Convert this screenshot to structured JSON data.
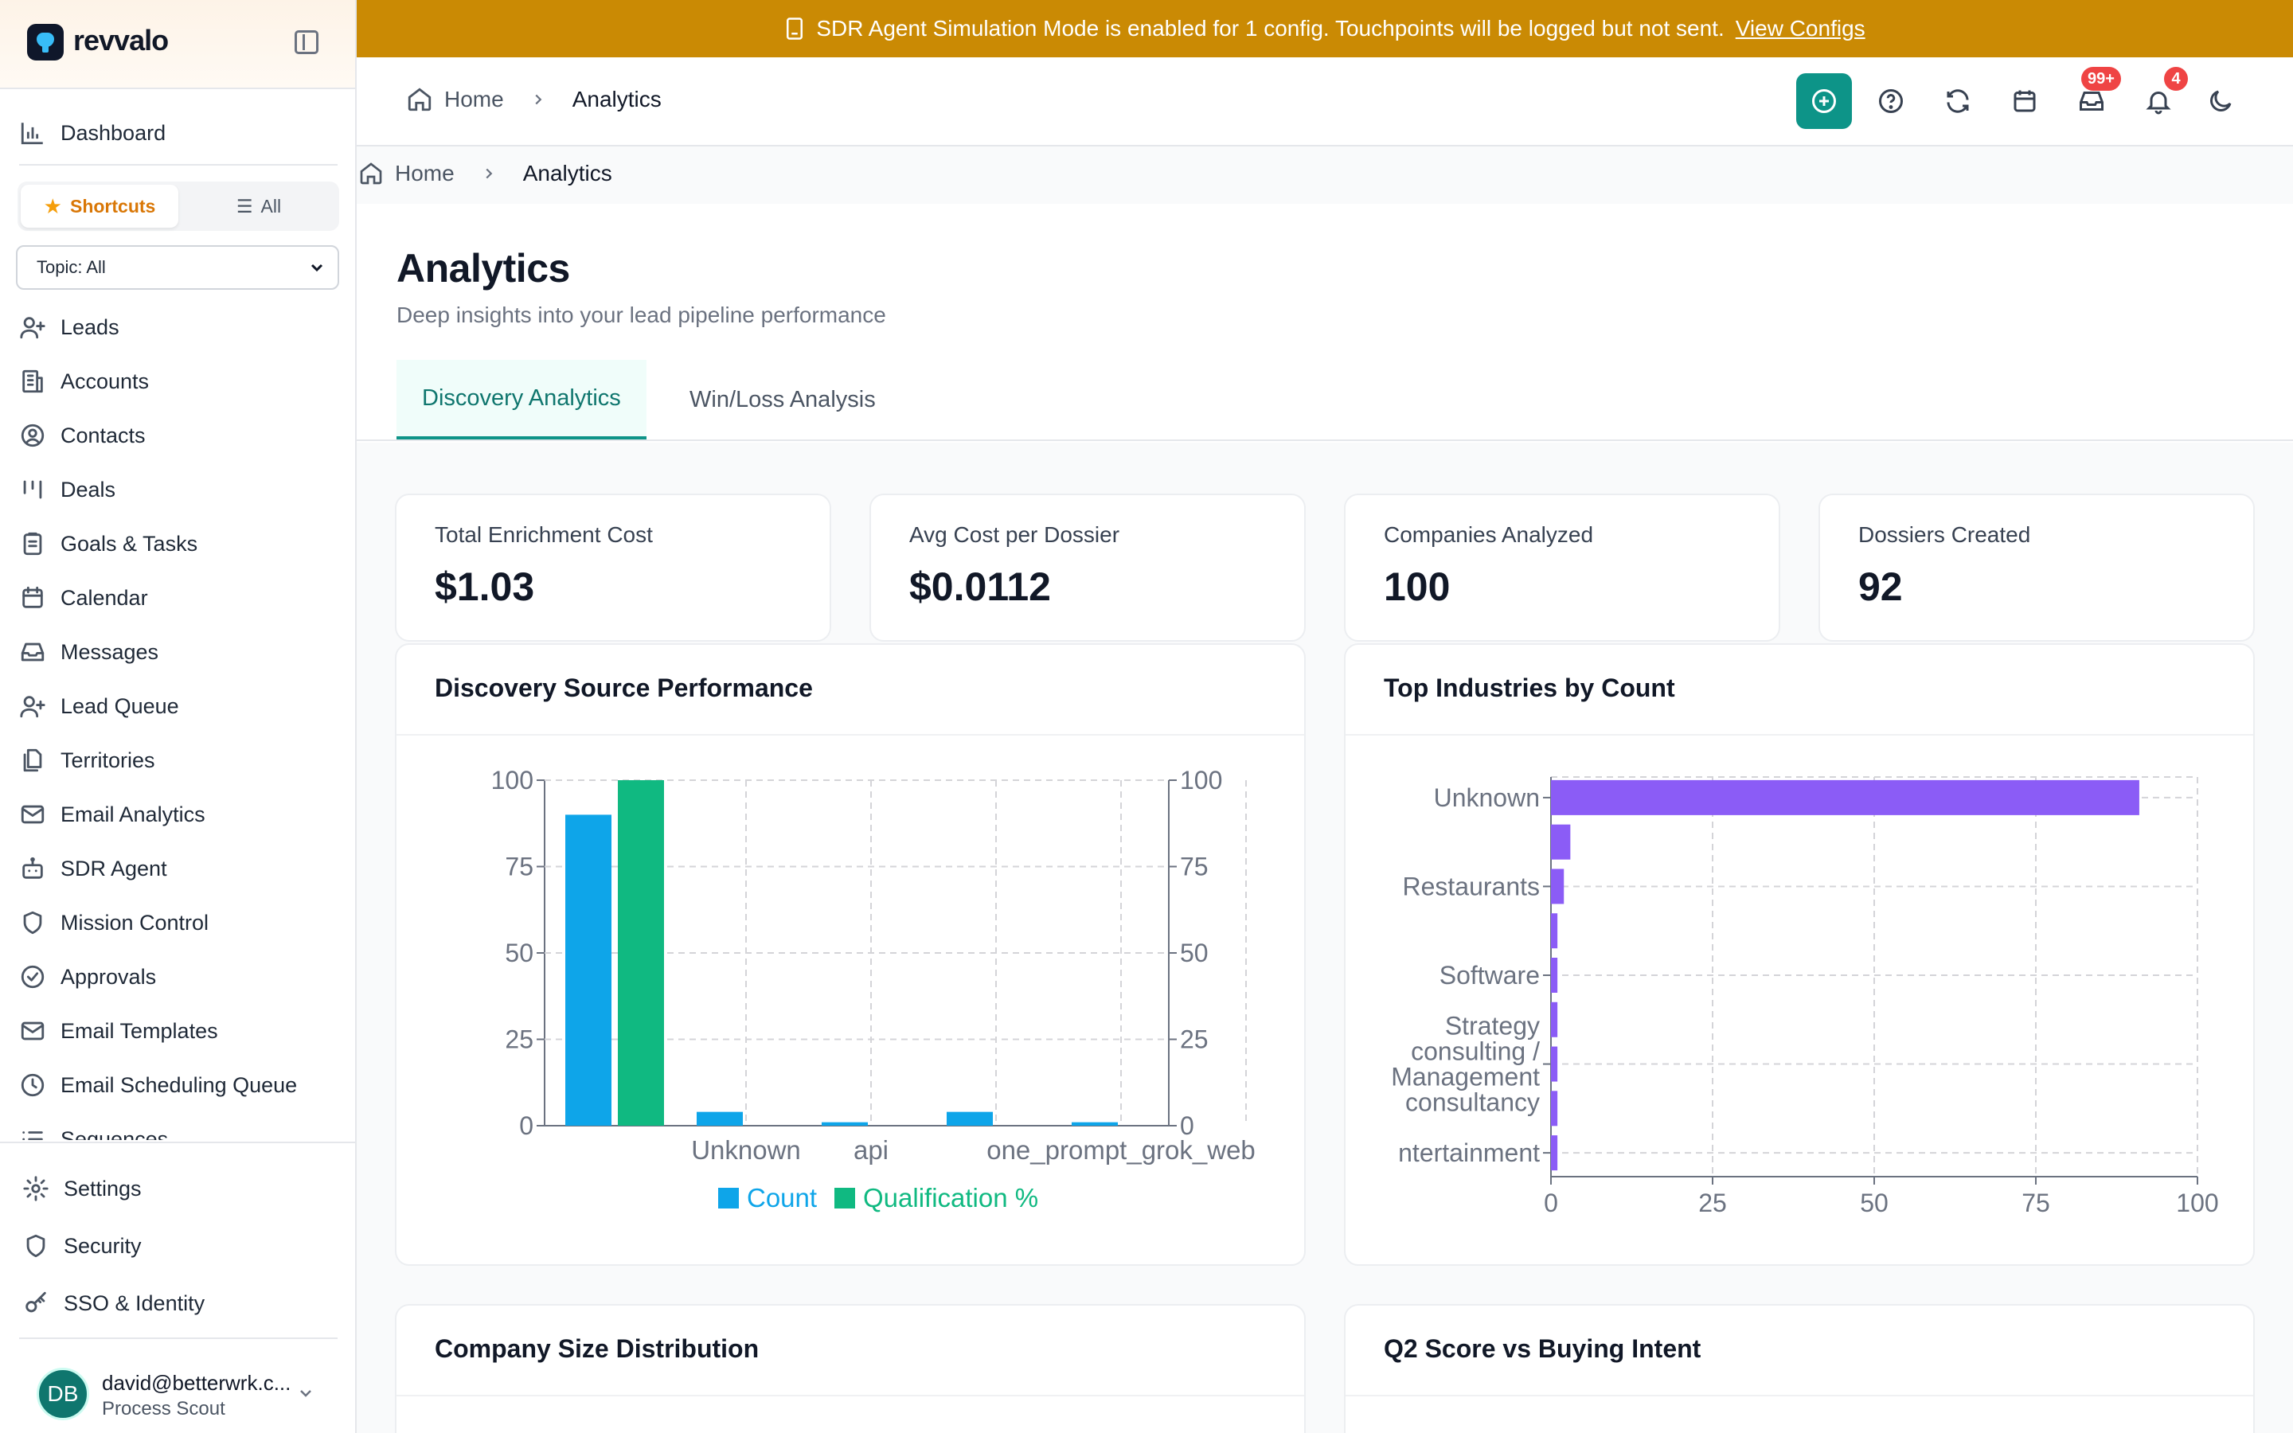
{
  "app": {
    "brand": "revvalo"
  },
  "banner": {
    "message": "SDR Agent Simulation Mode is enabled for 1 config. Touchpoints will be logged but not sent.",
    "link": "View Configs"
  },
  "sidebar": {
    "dashboard": "Dashboard",
    "shortcuts_label": "Shortcuts",
    "all_label": "All",
    "topic_select": "Topic: All",
    "items": [
      {
        "label": "Leads",
        "icon": "user-plus-icon"
      },
      {
        "label": "Accounts",
        "icon": "building-icon"
      },
      {
        "label": "Contacts",
        "icon": "user-circle-icon"
      },
      {
        "label": "Deals",
        "icon": "kanban-icon"
      },
      {
        "label": "Goals & Tasks",
        "icon": "clipboard-icon"
      },
      {
        "label": "Calendar",
        "icon": "calendar-icon"
      },
      {
        "label": "Messages",
        "icon": "inbox-icon"
      },
      {
        "label": "Lead Queue",
        "icon": "user-plus-icon"
      },
      {
        "label": "Territories",
        "icon": "files-icon"
      },
      {
        "label": "Email Analytics",
        "icon": "mail-icon"
      },
      {
        "label": "SDR Agent",
        "icon": "bot-icon"
      },
      {
        "label": "Mission Control",
        "icon": "shield-icon"
      },
      {
        "label": "Approvals",
        "icon": "check-circle-icon"
      },
      {
        "label": "Email Templates",
        "icon": "mail-icon"
      },
      {
        "label": "Email Scheduling Queue",
        "icon": "clock-icon"
      },
      {
        "label": "Sequences",
        "icon": "list-icon"
      }
    ],
    "bottom": [
      {
        "label": "Settings",
        "icon": "gear-icon"
      },
      {
        "label": "Security",
        "icon": "shield-icon"
      },
      {
        "label": "SSO & Identity",
        "icon": "key-icon"
      }
    ],
    "user": {
      "initials": "DB",
      "email": "david@betterwrk.c...",
      "role": "Process Scout"
    }
  },
  "header": {
    "breadcrumb": {
      "home": "Home",
      "current": "Analytics"
    },
    "inbox_badge": "99+",
    "notifications_badge": "4"
  },
  "breadcrumb2": {
    "home": "Home",
    "current": "Analytics"
  },
  "page": {
    "title": "Analytics",
    "subtitle": "Deep insights into your lead pipeline performance",
    "tabs": [
      "Discovery Analytics",
      "Win/Loss Analysis"
    ]
  },
  "stats": [
    {
      "label": "Total Enrichment Cost",
      "value": "$1.03"
    },
    {
      "label": "Avg Cost per Dossier",
      "value": "$0.0112"
    },
    {
      "label": "Companies Analyzed",
      "value": "100"
    },
    {
      "label": "Dossiers Created",
      "value": "92"
    }
  ],
  "cards": {
    "discovery_title": "Discovery Source Performance",
    "industries_title": "Top Industries by Count",
    "size_title": "Company Size Distribution",
    "q2_title": "Q2 Score vs Buying Intent"
  },
  "colors": {
    "accent": "#0d9488",
    "banner": "#ca8a04",
    "count": "#0ea5e9",
    "qualification": "#10b981",
    "industry": "#8b5cf6"
  },
  "chart_data": [
    {
      "type": "bar",
      "title": "Discovery Source Performance",
      "categories": [
        "",
        "Unknown",
        "api",
        "",
        "one_prompt_grok_web",
        ""
      ],
      "series": [
        {
          "name": "Count",
          "values": [
            90,
            4,
            1,
            4,
            1,
            0
          ]
        },
        {
          "name": "Qualification %",
          "values": [
            100,
            0,
            0,
            0,
            0,
            0
          ]
        }
      ],
      "ylim": [
        0,
        100
      ],
      "y2lim": [
        0,
        100
      ],
      "yticks": [
        "0",
        "25",
        "50",
        "75",
        "100"
      ],
      "legend": "bottom",
      "grid": true
    },
    {
      "type": "bar",
      "orientation": "horizontal",
      "title": "Top Industries by Count",
      "categories": [
        "Unknown",
        "",
        "Restaurants",
        "",
        "Software",
        "",
        "Strategy consulting / Management consultancy",
        "",
        "ntertainment"
      ],
      "values": [
        91,
        3,
        2,
        1,
        1,
        1,
        1,
        1,
        1
      ],
      "xlim": [
        0,
        100
      ],
      "xticks": [
        "0",
        "25",
        "50",
        "75",
        "100"
      ],
      "grid": true
    }
  ]
}
